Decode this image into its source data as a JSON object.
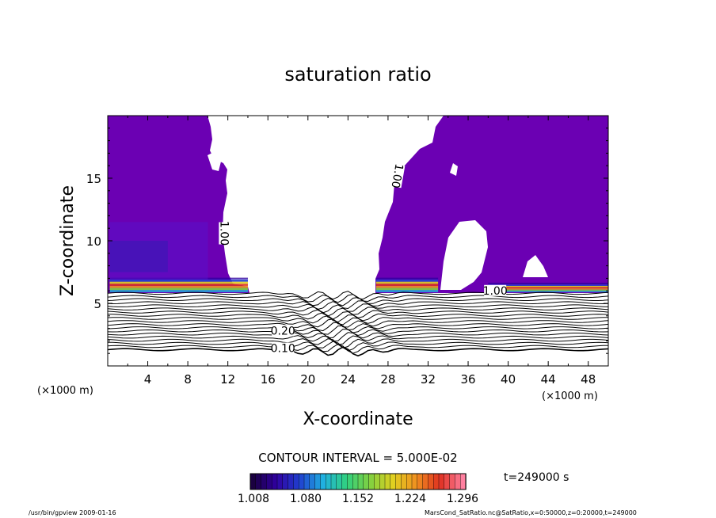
{
  "chart_data": {
    "type": "contour",
    "title": "saturation ratio",
    "xlabel": "X-coordinate",
    "ylabel": "Z-coordinate",
    "x_unit_left": "(×1000 m)",
    "x_unit_right": "(×1000 m)",
    "xlim": [
      0,
      50
    ],
    "ylim": [
      0,
      20
    ],
    "x_ticks": [
      4,
      8,
      12,
      16,
      20,
      24,
      28,
      32,
      36,
      40,
      44,
      48
    ],
    "y_ticks": [
      5,
      10,
      15
    ],
    "contour_interval_text": "CONTOUR INTERVAL = 5.000E-02",
    "time_text": "t=249000 s",
    "colorbar_ticks": [
      "1.008",
      "1.080",
      "1.152",
      "1.224",
      "1.296"
    ],
    "colorbar_colors": [
      "#1a0040",
      "#3000a0",
      "#2040d0",
      "#20b0e0",
      "#30d080",
      "#80d040",
      "#e0d020",
      "#f09020",
      "#e03020",
      "#ff80a0"
    ],
    "fill_color": "#6b00b3",
    "contour_labels": [
      {
        "text": "1.00",
        "x": 11.5,
        "z": 10.6,
        "rot": 90
      },
      {
        "text": "1.00",
        "x": 28.8,
        "z": 15.2,
        "rot": 100
      },
      {
        "text": "1.00",
        "x": 38.7,
        "z": 5.9,
        "rot": 0
      },
      {
        "text": "0.20",
        "x": 17.5,
        "z": 2.7,
        "rot": 0
      },
      {
        "text": "0.10",
        "x": 17.5,
        "z": 1.3,
        "rot": 0
      }
    ],
    "saturated_regions": [
      {
        "name": "left",
        "x_range": [
          0,
          14
        ],
        "z_range": [
          5.8,
          20
        ]
      },
      {
        "name": "right",
        "x_range": [
          26.5,
          50
        ],
        "z_range": [
          5.8,
          20
        ]
      }
    ],
    "unsaturated_levels": [
      0.1,
      0.15,
      0.2,
      0.25,
      0.3,
      0.35,
      0.4,
      0.45,
      0.5,
      0.55,
      0.6,
      0.65,
      0.7,
      0.75,
      0.8,
      0.85,
      0.9,
      0.95,
      1.0
    ]
  },
  "footer": {
    "left": "/usr/bin/gpview   2009-01-16",
    "right": "MarsCond_SatRatio.nc@SatRatio,x=0:50000,z=0:20000,t=249000"
  }
}
